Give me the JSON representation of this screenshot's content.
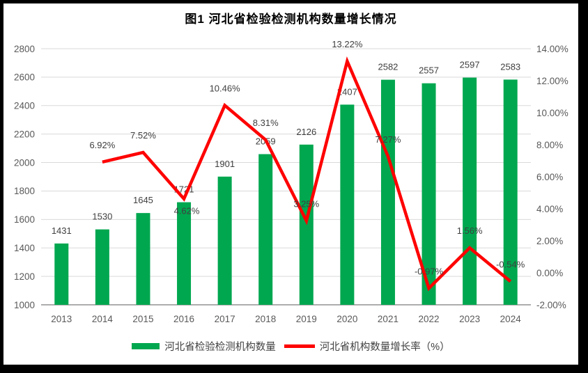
{
  "title": "图1  河北省检验检测机构数量增长情况",
  "legend": {
    "bar_label": "河北省检验检测机构数量",
    "line_label": "河北省机构数量增长率（%）"
  },
  "colors": {
    "bar": "#00A74F",
    "line": "#FE0000",
    "grid": "#D9D9D9",
    "axis_line": "#ADADAD",
    "tick_text": "#595959",
    "data_label_text": "#3F3F3F",
    "title_text": "#000000",
    "frame": "#000000",
    "background": "#FFFFFF"
  },
  "chart_data": {
    "type": "combo",
    "title": "图1  河北省检验检测机构数量增长情况",
    "categories": [
      "2013",
      "2014",
      "2015",
      "2016",
      "2017",
      "2018",
      "2019",
      "2020",
      "2021",
      "2022",
      "2023",
      "2024"
    ],
    "series": [
      {
        "name": "河北省检验检测机构数量",
        "type": "bar",
        "axis": "left",
        "values": [
          1431,
          1530,
          1645,
          1721,
          1901,
          2059,
          2126,
          2407,
          2582,
          2557,
          2597,
          2583
        ]
      },
      {
        "name": "河北省机构数量增长率（%）",
        "type": "line",
        "axis": "right",
        "values": [
          null,
          6.92,
          7.52,
          4.62,
          10.46,
          8.31,
          3.25,
          13.22,
          7.27,
          -0.97,
          1.56,
          -0.54
        ],
        "labels": [
          "",
          "6.92%",
          "7.52%",
          "4.62%",
          "10.46%",
          "8.31%",
          "3.25%",
          "13.22%",
          "7.27%",
          "-0.97%",
          "1.56%",
          "-0.54%"
        ],
        "label_positions": [
          "",
          "above",
          "above",
          "below",
          "above",
          "above",
          "above",
          "above",
          "above",
          "above",
          "above",
          "above"
        ]
      }
    ],
    "left_axis": {
      "min": 1000,
      "max": 2800,
      "step": 200,
      "tick_labels": [
        "1000",
        "1200",
        "1400",
        "1600",
        "1800",
        "2000",
        "2200",
        "2400",
        "2600",
        "2800"
      ]
    },
    "right_axis": {
      "min": -2,
      "max": 14,
      "step": 2,
      "tick_labels": [
        "-2.00%",
        "0.00%",
        "2.00%",
        "4.00%",
        "6.00%",
        "8.00%",
        "10.00%",
        "12.00%",
        "14.00%"
      ]
    },
    "grid": true,
    "legend_position": "bottom"
  }
}
